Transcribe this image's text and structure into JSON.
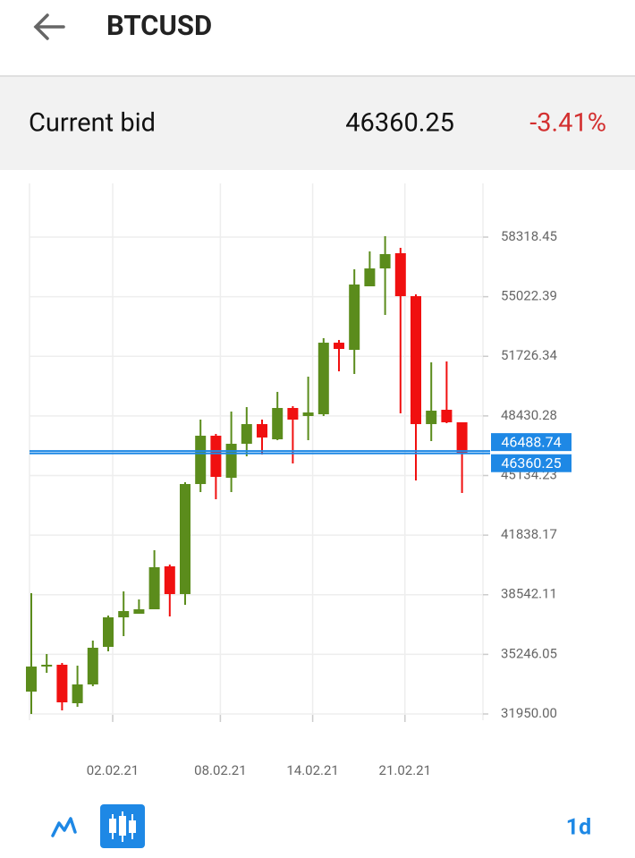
{
  "header": {
    "title": "BTCUSD"
  },
  "bid": {
    "label": "Current bid",
    "value": "46360.25",
    "change": "-3.41%"
  },
  "chart_data": {
    "type": "candlestick",
    "categories": [
      null,
      null,
      null,
      null,
      null,
      "02.02.21",
      null,
      null,
      null,
      null,
      null,
      null,
      "08.02.21",
      null,
      null,
      null,
      null,
      null,
      "14.02.21",
      null,
      null,
      null,
      null,
      null,
      "21.02.21",
      null,
      null,
      null,
      null
    ],
    "open": [
      33187,
      34621,
      34671,
      32544,
      33583,
      35660,
      37293,
      37491,
      37738,
      40113,
      38579,
      44664,
      47335,
      45010,
      46890,
      47978,
      47137,
      48869,
      48424,
      48522,
      52480,
      52084,
      55597,
      56586,
      57427,
      55052,
      47978,
      48770,
      48077
    ],
    "high": [
      38628,
      35264,
      34770,
      34621,
      36007,
      37392,
      38727,
      38282,
      41003,
      40211,
      44763,
      48226,
      47434,
      48671,
      48918,
      48226,
      49759,
      48968,
      50600,
      52727,
      52628,
      56537,
      57526,
      58367,
      57724,
      55151,
      51392,
      51441,
      47978
    ],
    "low": [
      31950,
      34226,
      32148,
      32346,
      33484,
      35413,
      36254,
      37491,
      37738,
      37342,
      37985,
      44219,
      43823,
      44219,
      46197,
      46296,
      47088,
      45802,
      47088,
      48424,
      50897,
      50749,
      55597,
      54014,
      48572,
      44862,
      47038,
      48028,
      44169
    ],
    "close": [
      34572,
      34671,
      32593,
      33583,
      35611,
      37293,
      37639,
      37738,
      40063,
      38579,
      44664,
      47335,
      45060,
      46890,
      47978,
      47236,
      48869,
      48226,
      48621,
      52480,
      52134,
      55696,
      56586,
      57378,
      55052,
      47978,
      48720,
      48077,
      46400
    ],
    "up_color": "#5b8c1c",
    "down_color": "#f01010",
    "ylim": [
      31604,
      61287
    ],
    "yticks": [
      {
        "value": 31950,
        "label": "31950.00"
      },
      35246.05,
      38542.11,
      41838.17,
      45134.23,
      48430.28,
      51726.34,
      55022.39,
      58318.45
    ],
    "price_lines": [
      {
        "value": 46488.74,
        "color": "#1e88e5"
      },
      {
        "value": 46360.25,
        "color": "#1e88e5"
      }
    ],
    "grid": true
  },
  "toolbar": {
    "timeframe": "1d"
  }
}
